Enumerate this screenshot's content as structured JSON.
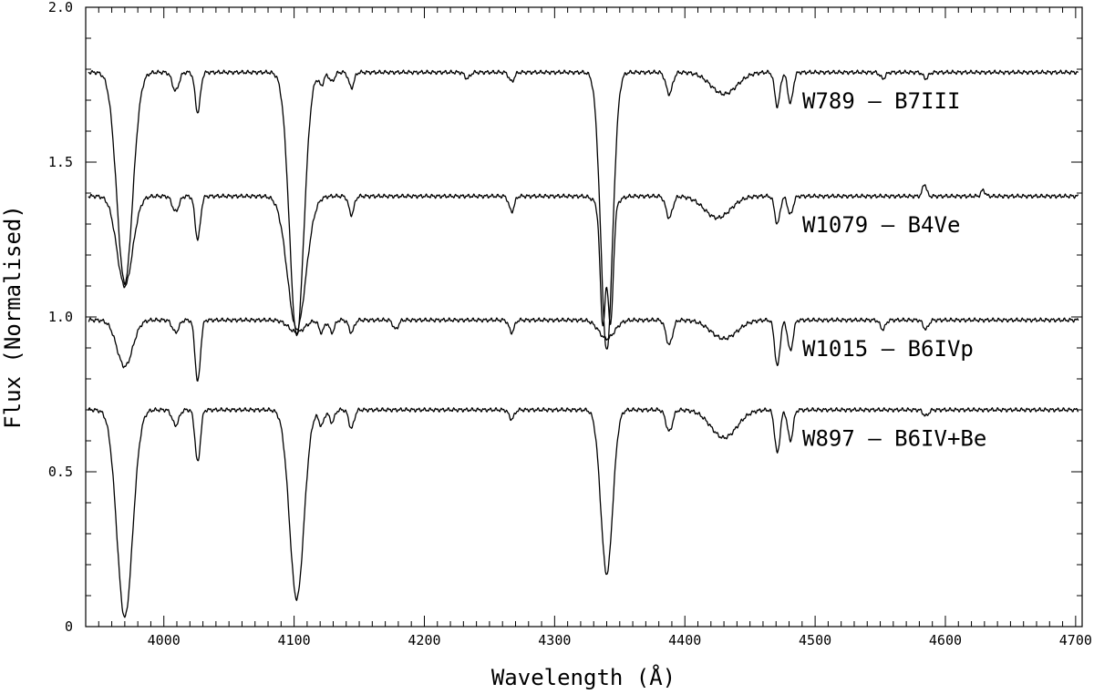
{
  "chart_data": {
    "type": "line",
    "title": "",
    "xlabel": "Wavelength (Å)",
    "ylabel": "Flux (Normalised)",
    "xlim": [
      3940,
      4705
    ],
    "ylim": [
      0,
      2.0
    ],
    "x_ticks": [
      4000,
      4100,
      4200,
      4300,
      4400,
      4500,
      4600,
      4700
    ],
    "x_tick_labels": [
      "4000",
      "4100",
      "4200",
      "4300",
      "4400",
      "4500",
      "4600",
      "4700"
    ],
    "y_ticks": [
      0,
      0.5,
      1.0,
      1.5,
      2.0
    ],
    "y_tick_labels": [
      "0",
      "0.5",
      "1.0",
      "1.5",
      "2.0"
    ],
    "grid": false,
    "legend": "none",
    "annotations": [
      {
        "text": "W789 – B7III",
        "series": 0
      },
      {
        "text": "W1079 – B4Ve",
        "series": 1
      },
      {
        "text": "W1015 – B6IVp",
        "series": 2
      },
      {
        "text": "W897 – B6IV+Be",
        "series": 3
      }
    ],
    "series": [
      {
        "continuum": 1.79,
        "label_y": 1.7,
        "features": [
          [
            3970,
            0.68,
            6
          ],
          [
            4009,
            0.06,
            2.5
          ],
          [
            4026,
            0.13,
            2
          ],
          [
            4121,
            0.04,
            2
          ],
          [
            4102,
            0.85,
            5.5
          ],
          [
            4129,
            0.03,
            2
          ],
          [
            4144,
            0.05,
            2
          ],
          [
            4233,
            0.02,
            2
          ],
          [
            4267,
            0.03,
            2
          ],
          [
            4340,
            0.9,
            4.5
          ],
          [
            4388,
            0.07,
            2.5
          ],
          [
            4430,
            0.07,
            10
          ],
          [
            4471,
            0.11,
            2
          ],
          [
            4481,
            0.1,
            2
          ],
          [
            4552,
            0.02,
            2
          ],
          [
            4585,
            0.02,
            2
          ]
        ]
      },
      {
        "continuum": 1.39,
        "label_y": 1.3,
        "features": [
          [
            3970,
            0.29,
            6
          ],
          [
            4009,
            0.05,
            2.5
          ],
          [
            4026,
            0.14,
            2
          ],
          [
            4102,
            0.43,
            7
          ],
          [
            4144,
            0.06,
            2
          ],
          [
            4267,
            0.05,
            2
          ],
          [
            4337,
            0.36,
            2
          ],
          [
            4343,
            0.36,
            2
          ],
          [
            4340,
            0.06,
            6
          ],
          [
            4388,
            0.07,
            2.5
          ],
          [
            4425,
            0.07,
            10
          ],
          [
            4471,
            0.09,
            2
          ],
          [
            4481,
            0.06,
            2
          ],
          [
            4584,
            -0.04,
            1.5
          ],
          [
            4629,
            -0.02,
            1.5
          ]
        ]
      },
      {
        "continuum": 0.99,
        "label_y": 0.9,
        "features": [
          [
            3970,
            0.15,
            6
          ],
          [
            4009,
            0.04,
            2.5
          ],
          [
            4026,
            0.2,
            2
          ],
          [
            4102,
            0.04,
            6
          ],
          [
            4121,
            0.04,
            2
          ],
          [
            4129,
            0.04,
            2
          ],
          [
            4144,
            0.04,
            2
          ],
          [
            4178,
            0.03,
            2
          ],
          [
            4267,
            0.04,
            2
          ],
          [
            4340,
            0.06,
            6
          ],
          [
            4388,
            0.08,
            2.5
          ],
          [
            4430,
            0.06,
            10
          ],
          [
            4471,
            0.15,
            2
          ],
          [
            4481,
            0.1,
            2
          ],
          [
            4552,
            0.03,
            2
          ],
          [
            4585,
            0.03,
            2
          ]
        ]
      },
      {
        "continuum": 0.7,
        "label_y": 0.61,
        "features": [
          [
            3970,
            0.67,
            6
          ],
          [
            4009,
            0.05,
            2.5
          ],
          [
            4026,
            0.17,
            2
          ],
          [
            4102,
            0.61,
            5.5
          ],
          [
            4121,
            0.05,
            2
          ],
          [
            4129,
            0.04,
            2
          ],
          [
            4144,
            0.06,
            2
          ],
          [
            4267,
            0.03,
            2
          ],
          [
            4340,
            0.53,
            4.5
          ],
          [
            4388,
            0.07,
            2.5
          ],
          [
            4430,
            0.09,
            10
          ],
          [
            4471,
            0.14,
            2
          ],
          [
            4481,
            0.1,
            2
          ],
          [
            4585,
            0.02,
            2
          ]
        ]
      }
    ]
  }
}
